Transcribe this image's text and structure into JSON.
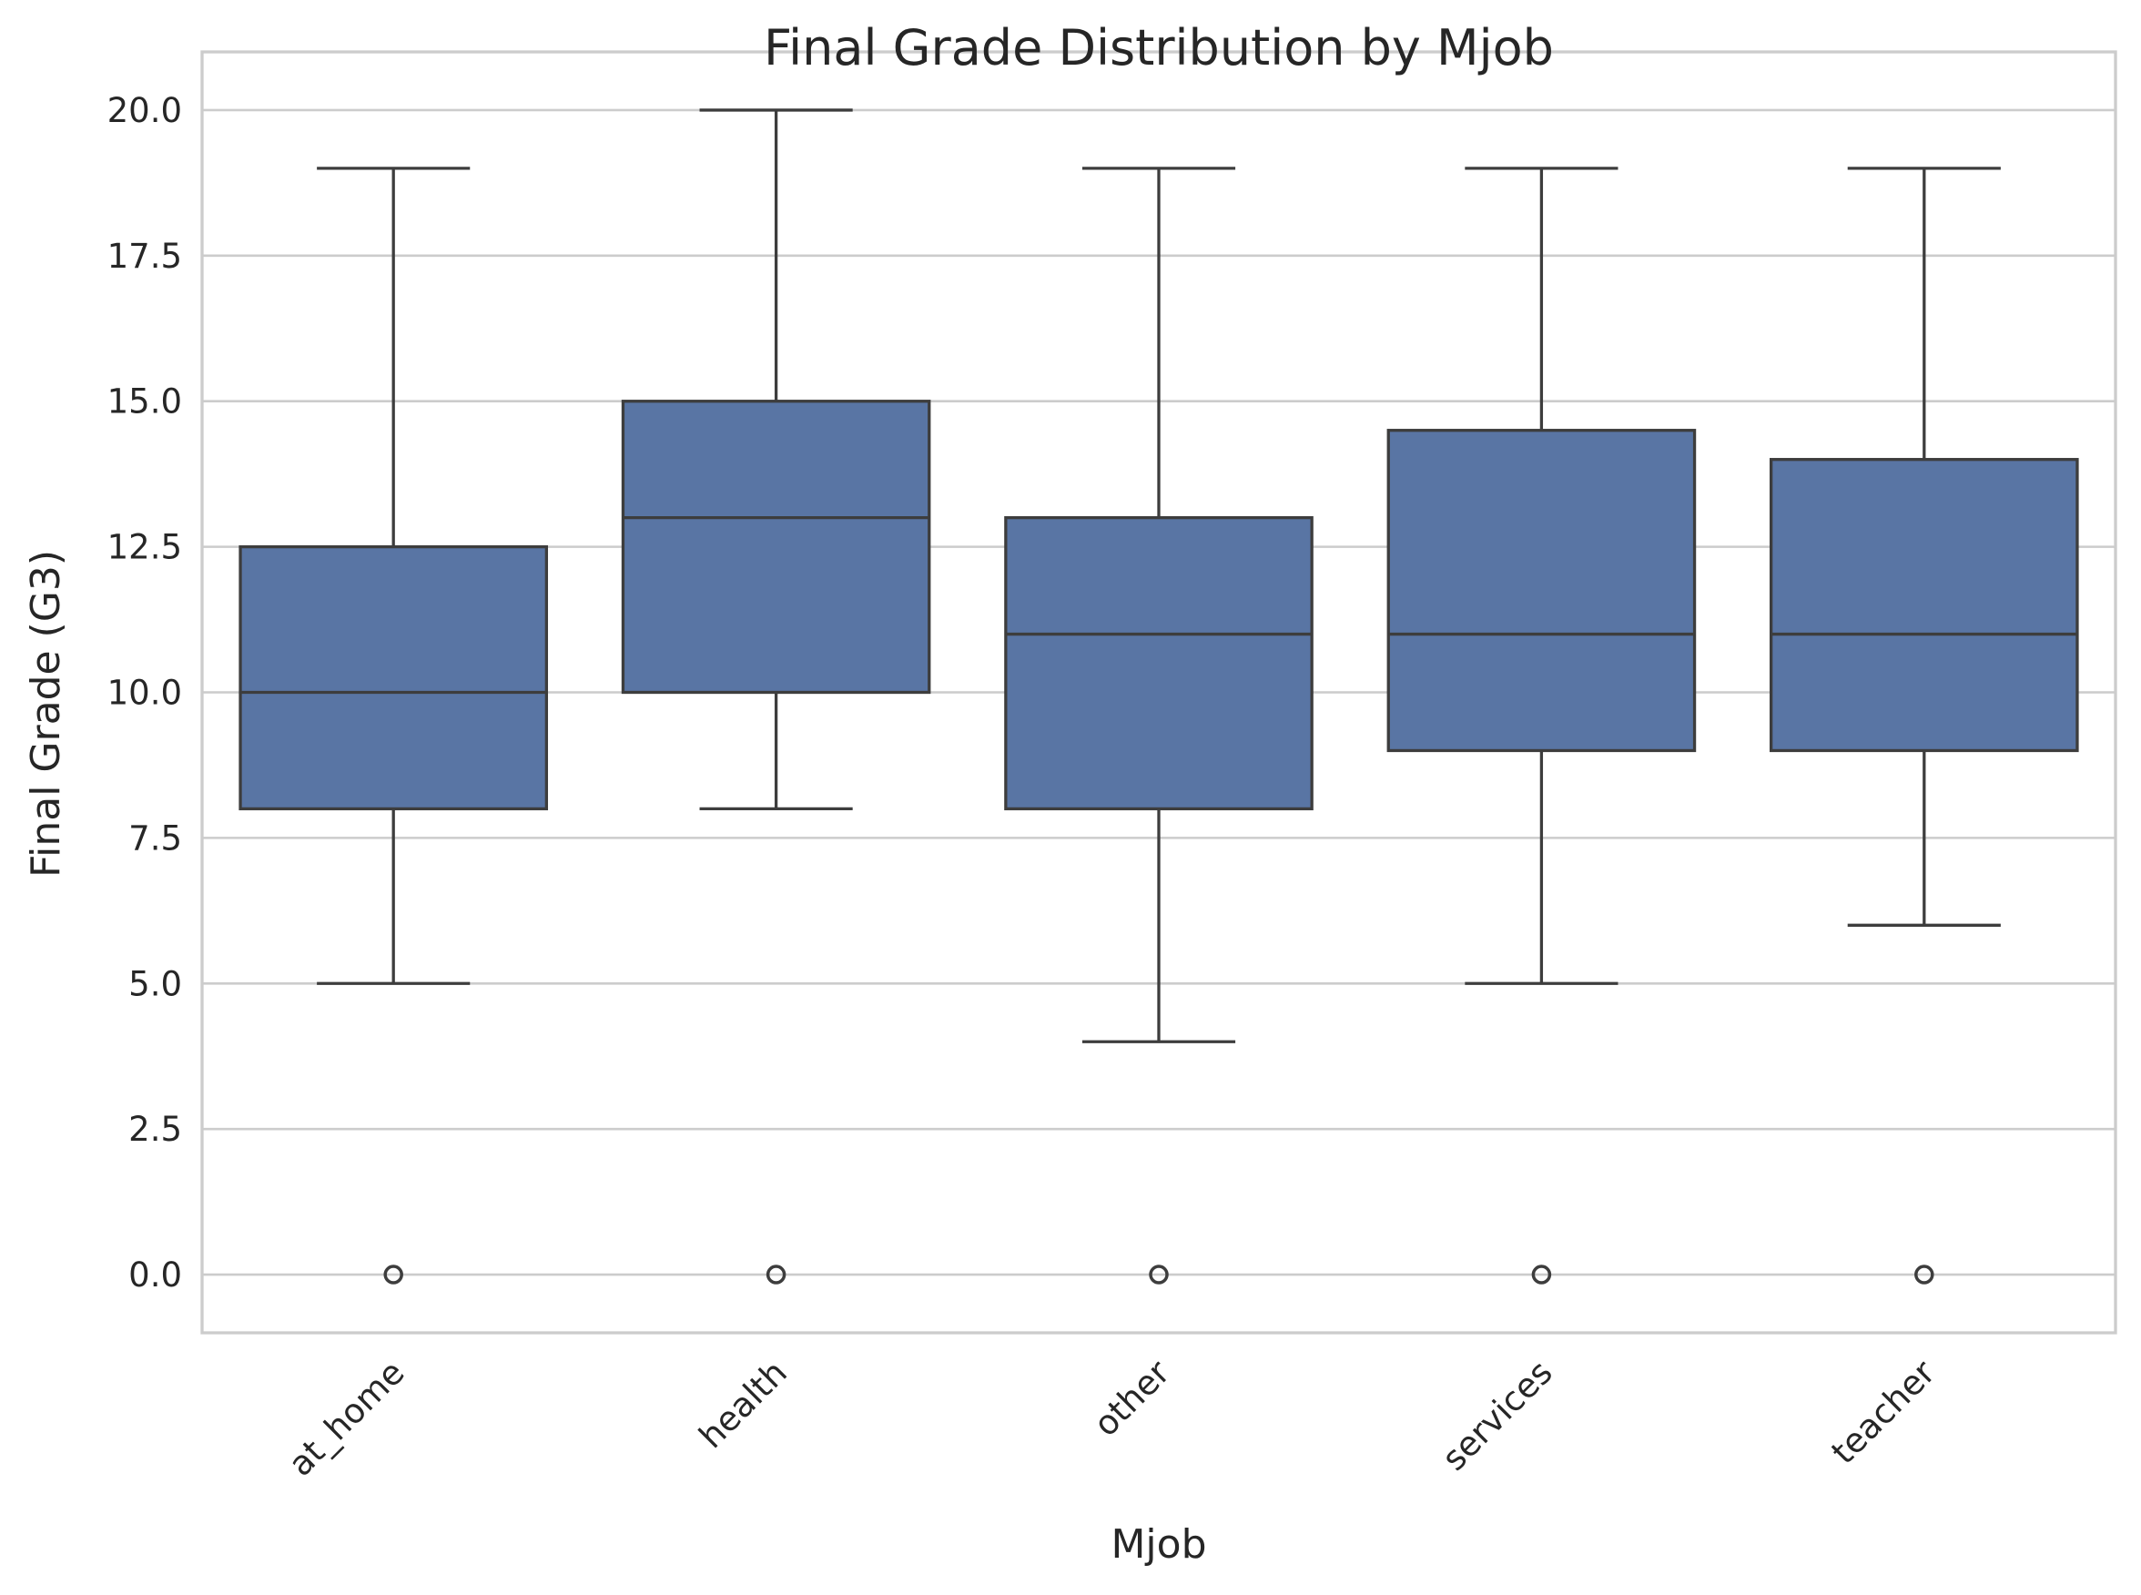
{
  "chart_data": {
    "type": "box",
    "title": "Final Grade Distribution by Mjob",
    "xlabel": "Mjob",
    "ylabel": "Final Grade (G3)",
    "ylim": [
      -1,
      21
    ],
    "yticks": [
      0,
      2.5,
      5,
      7.5,
      10,
      12.5,
      15,
      17.5,
      20
    ],
    "ytick_labels": [
      "0.0",
      "2.5",
      "5.0",
      "7.5",
      "10.0",
      "12.5",
      "15.0",
      "17.5",
      "20.0"
    ],
    "categories": [
      "at_home",
      "health",
      "other",
      "services",
      "teacher"
    ],
    "grid": true,
    "colors": {
      "box_fill": "#5975a4",
      "line": "#3d3d3d",
      "grid": "#cccccc",
      "spine": "#cccccc",
      "text": "#262626"
    },
    "boxes": [
      {
        "category": "at_home",
        "whisker_low": 5,
        "q1": 8,
        "median": 10,
        "q3": 12.5,
        "whisker_high": 19,
        "outliers": [
          0
        ]
      },
      {
        "category": "health",
        "whisker_low": 8,
        "q1": 10,
        "median": 13,
        "q3": 15,
        "whisker_high": 20,
        "outliers": [
          0
        ]
      },
      {
        "category": "other",
        "whisker_low": 4,
        "q1": 8,
        "median": 11,
        "q3": 13,
        "whisker_high": 19,
        "outliers": [
          0
        ]
      },
      {
        "category": "services",
        "whisker_low": 5,
        "q1": 9,
        "median": 11,
        "q3": 14.5,
        "whisker_high": 19,
        "outliers": [
          0
        ]
      },
      {
        "category": "teacher",
        "whisker_low": 6,
        "q1": 9,
        "median": 11,
        "q3": 14,
        "whisker_high": 19,
        "outliers": [
          0
        ]
      }
    ]
  }
}
